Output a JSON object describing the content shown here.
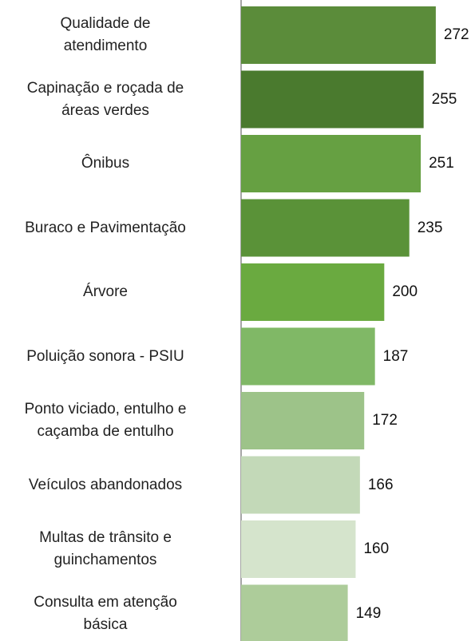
{
  "chart_data": {
    "type": "barh",
    "categories": [
      "Qualidade de\natendimento",
      "Capinação e roçada de\náreas verdes",
      "Ônibus",
      "Buraco e Pavimentação",
      "Árvore",
      "Poluição sonora - PSIU",
      "Ponto viciado, entulho e\ncaçamba de entulho",
      "Veículos abandonados",
      "Multas de trânsito e\nguinchamentos",
      "Consulta em atenção\nbásica"
    ],
    "values": [
      272,
      255,
      251,
      235,
      200,
      187,
      172,
      166,
      160,
      149
    ],
    "colors": [
      "#5b8c3a",
      "#4a7a2e",
      "#66a042",
      "#5a9238",
      "#6aaa40",
      "#80b866",
      "#9dc389",
      "#c3d9b8",
      "#d5e4cc",
      "#adcc9a"
    ],
    "xlim": [
      0,
      300
    ]
  }
}
